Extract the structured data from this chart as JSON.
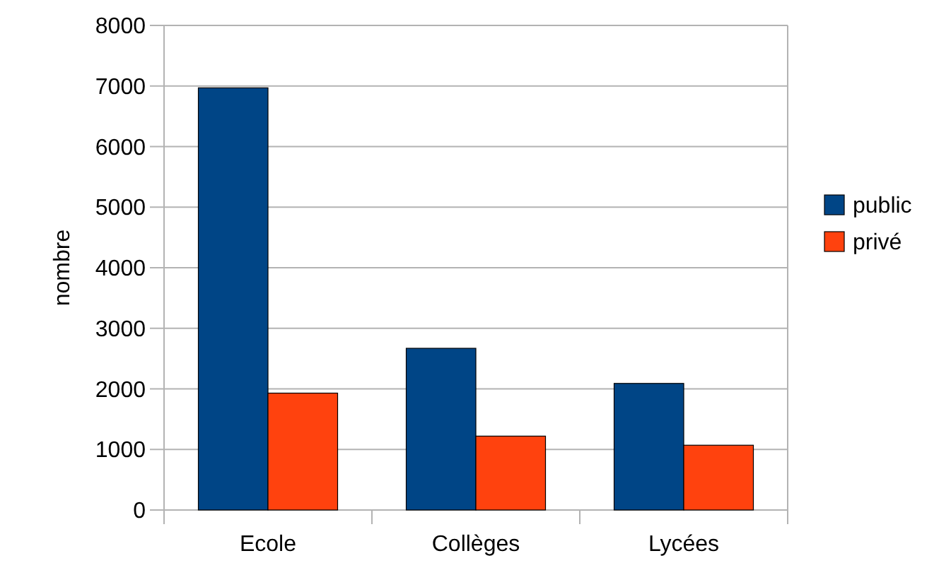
{
  "chart_data": {
    "type": "bar",
    "ylabel": "nombre",
    "categories": [
      "Ecole",
      "Collèges",
      "Lycées"
    ],
    "series": [
      {
        "name": "public",
        "color": "#004586",
        "values": [
          6970,
          2670,
          2090
        ]
      },
      {
        "name": "privé",
        "color": "#ff420e",
        "values": [
          1930,
          1220,
          1070
        ]
      }
    ],
    "ylim": [
      0,
      8000
    ],
    "yticks": [
      0,
      1000,
      2000,
      3000,
      4000,
      5000,
      6000,
      7000,
      8000
    ],
    "grid": "y",
    "legend": "right"
  }
}
